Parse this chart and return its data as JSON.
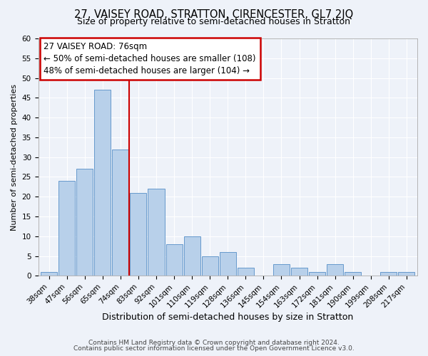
{
  "title": "27, VAISEY ROAD, STRATTON, CIRENCESTER, GL7 2JQ",
  "subtitle": "Size of property relative to semi-detached houses in Stratton",
  "xlabel": "Distribution of semi-detached houses by size in Stratton",
  "ylabel": "Number of semi-detached properties",
  "categories": [
    "38sqm",
    "47sqm",
    "56sqm",
    "65sqm",
    "74sqm",
    "83sqm",
    "92sqm",
    "101sqm",
    "110sqm",
    "119sqm",
    "128sqm",
    "136sqm",
    "145sqm",
    "154sqm",
    "163sqm",
    "172sqm",
    "181sqm",
    "190sqm",
    "199sqm",
    "208sqm",
    "217sqm"
  ],
  "values": [
    1,
    24,
    27,
    47,
    32,
    21,
    22,
    8,
    10,
    5,
    6,
    2,
    0,
    3,
    2,
    1,
    3,
    1,
    0,
    1,
    1
  ],
  "bar_color": "#b8d0ea",
  "bar_edge_color": "#6699cc",
  "vline_x_index": 4.5,
  "vline_color": "#cc0000",
  "annotation_line1": "27 VAISEY ROAD: 76sqm",
  "annotation_line2": "← 50% of semi-detached houses are smaller (108)",
  "annotation_line3": "48% of semi-detached houses are larger (104) →",
  "annotation_box_edge_color": "#cc0000",
  "ylim": [
    0,
    60
  ],
  "yticks": [
    0,
    5,
    10,
    15,
    20,
    25,
    30,
    35,
    40,
    45,
    50,
    55,
    60
  ],
  "footer_line1": "Contains HM Land Registry data © Crown copyright and database right 2024.",
  "footer_line2": "Contains public sector information licensed under the Open Government Licence v3.0.",
  "background_color": "#eef2f9",
  "grid_color": "#ffffff",
  "title_fontsize": 10.5,
  "subtitle_fontsize": 9,
  "xlabel_fontsize": 9,
  "ylabel_fontsize": 8,
  "tick_fontsize": 7.5,
  "annotation_fontsize": 8.5,
  "footer_fontsize": 6.5
}
